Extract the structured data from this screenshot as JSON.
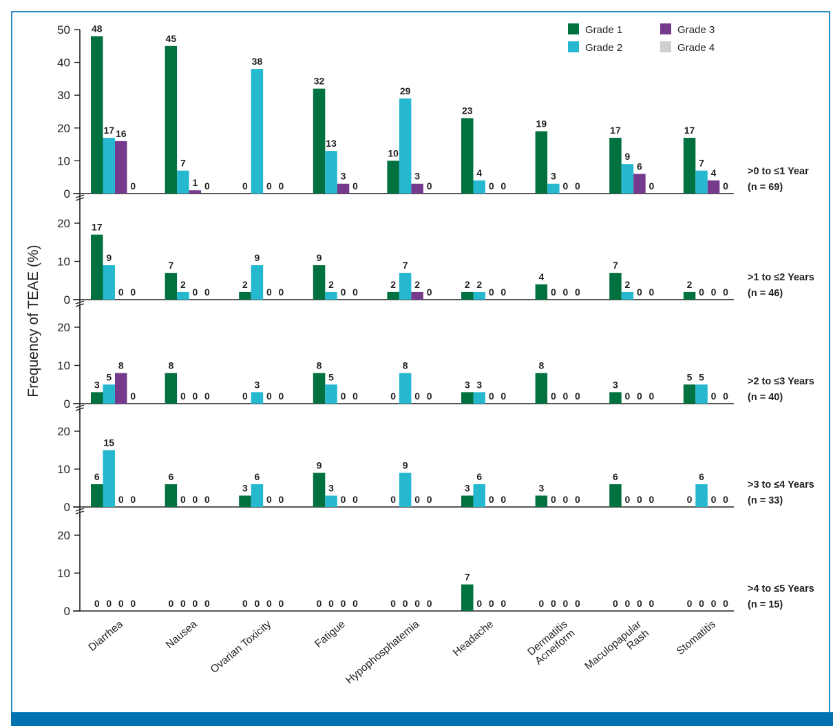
{
  "chart_data": {
    "type": "bar",
    "ylabel": "Frequency of TEAE (%)",
    "xlabel": "",
    "legend_position": "top-right",
    "categories": [
      "Diarrhea",
      "Nausea",
      "Ovarian Toxicity",
      "Fatigue",
      "Hypophosphatemia",
      "Headache",
      "Dermatitis\nAcneiform",
      "Maculopapular\nRash",
      "Stomatitis"
    ],
    "series_names": [
      "Grade 1",
      "Grade 2",
      "Grade 3",
      "Grade 4"
    ],
    "colors": {
      "Grade 1": "#00713f",
      "Grade 2": "#26b8cf",
      "Grade 3": "#763a8c",
      "Grade 4": "#cfcfd1"
    },
    "panels": [
      {
        "label": ">0 to ≤1 Year",
        "n_label": "(n = 69)",
        "ylim": [
          0,
          50
        ],
        "yticks": [
          0,
          10,
          20,
          30,
          40,
          50
        ],
        "series": [
          {
            "name": "Grade 1",
            "values": [
              48,
              45,
              0,
              32,
              10,
              23,
              19,
              17,
              17
            ]
          },
          {
            "name": "Grade 2",
            "values": [
              17,
              7,
              38,
              13,
              29,
              4,
              3,
              9,
              7
            ]
          },
          {
            "name": "Grade 3",
            "values": [
              16,
              1,
              0,
              3,
              3,
              0,
              0,
              6,
              4
            ]
          },
          {
            "name": "Grade 4",
            "values": [
              0,
              0,
              0,
              0,
              0,
              0,
              0,
              0,
              0
            ]
          }
        ]
      },
      {
        "label": ">1 to ≤2 Years",
        "n_label": "(n = 46)",
        "ylim": [
          0,
          20
        ],
        "yticks": [
          0,
          10,
          20
        ],
        "series": [
          {
            "name": "Grade 1",
            "values": [
              17,
              7,
              2,
              9,
              2,
              2,
              4,
              7,
              2
            ]
          },
          {
            "name": "Grade 2",
            "values": [
              9,
              2,
              9,
              2,
              7,
              2,
              0,
              2,
              0
            ]
          },
          {
            "name": "Grade 3",
            "values": [
              0,
              0,
              0,
              0,
              2,
              0,
              0,
              0,
              0
            ]
          },
          {
            "name": "Grade 4",
            "values": [
              0,
              0,
              0,
              0,
              0,
              0,
              0,
              0,
              0
            ]
          }
        ]
      },
      {
        "label": ">2 to ≤3 Years",
        "n_label": "(n = 40)",
        "ylim": [
          0,
          20
        ],
        "yticks": [
          0,
          10,
          20
        ],
        "series": [
          {
            "name": "Grade 1",
            "values": [
              3,
              8,
              0,
              8,
              0,
              3,
              8,
              3,
              5
            ]
          },
          {
            "name": "Grade 2",
            "values": [
              5,
              0,
              3,
              5,
              8,
              3,
              0,
              0,
              5
            ]
          },
          {
            "name": "Grade 3",
            "values": [
              8,
              0,
              0,
              0,
              0,
              0,
              0,
              0,
              0
            ]
          },
          {
            "name": "Grade 4",
            "values": [
              0,
              0,
              0,
              0,
              0,
              0,
              0,
              0,
              0
            ]
          }
        ]
      },
      {
        "label": ">3 to ≤4 Years",
        "n_label": "(n = 33)",
        "ylim": [
          0,
          20
        ],
        "yticks": [
          0,
          10,
          20
        ],
        "series": [
          {
            "name": "Grade 1",
            "values": [
              6,
              6,
              3,
              9,
              0,
              3,
              3,
              6,
              0
            ]
          },
          {
            "name": "Grade 2",
            "values": [
              15,
              0,
              6,
              3,
              9,
              6,
              0,
              0,
              6
            ]
          },
          {
            "name": "Grade 3",
            "values": [
              0,
              0,
              0,
              0,
              0,
              0,
              0,
              0,
              0
            ]
          },
          {
            "name": "Grade 4",
            "values": [
              0,
              0,
              0,
              0,
              0,
              0,
              0,
              0,
              0
            ]
          }
        ]
      },
      {
        "label": ">4 to ≤5 Years",
        "n_label": "(n = 15)",
        "ylim": [
          0,
          20
        ],
        "yticks": [
          0,
          10,
          20
        ],
        "series": [
          {
            "name": "Grade 1",
            "values": [
              0,
              0,
              0,
              0,
              0,
              7,
              0,
              0,
              0
            ]
          },
          {
            "name": "Grade 2",
            "values": [
              0,
              0,
              0,
              0,
              0,
              0,
              0,
              0,
              0
            ]
          },
          {
            "name": "Grade 3",
            "values": [
              0,
              0,
              0,
              0,
              0,
              0,
              0,
              0,
              0
            ]
          },
          {
            "name": "Grade 4",
            "values": [
              0,
              0,
              0,
              0,
              0,
              0,
              0,
              0,
              0
            ]
          }
        ]
      }
    ]
  }
}
